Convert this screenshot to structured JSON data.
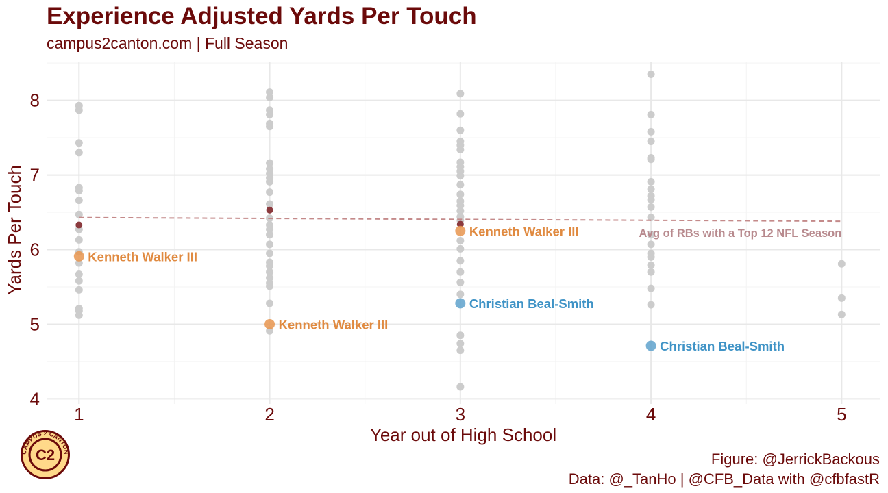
{
  "chart_data": {
    "type": "scatter",
    "title": "Experience Adjusted Yards Per Touch",
    "subtitle": "campus2canton.com | Full Season",
    "xlabel": "Year out of High School",
    "ylabel": "Yards Per Touch",
    "xlim": [
      0.83,
      5.2
    ],
    "ylim": [
      3.93,
      8.52
    ],
    "x_ticks": [
      1,
      2,
      3,
      4,
      5
    ],
    "y_ticks": [
      4,
      5,
      6,
      7,
      8
    ],
    "background_points": [
      {
        "x": 1,
        "y": 7.93
      },
      {
        "x": 1,
        "y": 7.87
      },
      {
        "x": 1,
        "y": 7.43
      },
      {
        "x": 1,
        "y": 7.3
      },
      {
        "x": 1,
        "y": 6.83
      },
      {
        "x": 1,
        "y": 6.79
      },
      {
        "x": 1,
        "y": 6.66
      },
      {
        "x": 1,
        "y": 6.47
      },
      {
        "x": 1,
        "y": 6.27
      },
      {
        "x": 1,
        "y": 6.13
      },
      {
        "x": 1,
        "y": 5.97
      },
      {
        "x": 1,
        "y": 5.82
      },
      {
        "x": 1,
        "y": 5.67
      },
      {
        "x": 1,
        "y": 5.58
      },
      {
        "x": 1,
        "y": 5.46
      },
      {
        "x": 1,
        "y": 5.21
      },
      {
        "x": 1,
        "y": 5.18
      },
      {
        "x": 1,
        "y": 5.12
      },
      {
        "x": 2,
        "y": 8.11
      },
      {
        "x": 2,
        "y": 8.04
      },
      {
        "x": 2,
        "y": 7.87
      },
      {
        "x": 2,
        "y": 7.81
      },
      {
        "x": 2,
        "y": 7.69
      },
      {
        "x": 2,
        "y": 7.65
      },
      {
        "x": 2,
        "y": 7.16
      },
      {
        "x": 2,
        "y": 7.08
      },
      {
        "x": 2,
        "y": 7.02
      },
      {
        "x": 2,
        "y": 6.96
      },
      {
        "x": 2,
        "y": 6.91
      },
      {
        "x": 2,
        "y": 6.77
      },
      {
        "x": 2,
        "y": 6.61
      },
      {
        "x": 2,
        "y": 6.42
      },
      {
        "x": 2,
        "y": 6.33
      },
      {
        "x": 2,
        "y": 6.27
      },
      {
        "x": 2,
        "y": 6.2
      },
      {
        "x": 2,
        "y": 6.07
      },
      {
        "x": 2,
        "y": 5.95
      },
      {
        "x": 2,
        "y": 5.83
      },
      {
        "x": 2,
        "y": 5.78
      },
      {
        "x": 2,
        "y": 5.7
      },
      {
        "x": 2,
        "y": 5.62
      },
      {
        "x": 2,
        "y": 5.55
      },
      {
        "x": 2,
        "y": 5.51
      },
      {
        "x": 2,
        "y": 5.28
      },
      {
        "x": 2,
        "y": 4.91
      },
      {
        "x": 3,
        "y": 8.09
      },
      {
        "x": 3,
        "y": 7.82
      },
      {
        "x": 3,
        "y": 7.6
      },
      {
        "x": 3,
        "y": 7.45
      },
      {
        "x": 3,
        "y": 7.4
      },
      {
        "x": 3,
        "y": 7.34
      },
      {
        "x": 3,
        "y": 7.17
      },
      {
        "x": 3,
        "y": 7.11
      },
      {
        "x": 3,
        "y": 7.05
      },
      {
        "x": 3,
        "y": 6.99
      },
      {
        "x": 3,
        "y": 6.87
      },
      {
        "x": 3,
        "y": 6.74
      },
      {
        "x": 3,
        "y": 6.65
      },
      {
        "x": 3,
        "y": 6.59
      },
      {
        "x": 3,
        "y": 6.52
      },
      {
        "x": 3,
        "y": 6.44
      },
      {
        "x": 3,
        "y": 6.39
      },
      {
        "x": 3,
        "y": 6.12
      },
      {
        "x": 3,
        "y": 6.01
      },
      {
        "x": 3,
        "y": 5.85
      },
      {
        "x": 3,
        "y": 5.7
      },
      {
        "x": 3,
        "y": 5.56
      },
      {
        "x": 3,
        "y": 5.4
      },
      {
        "x": 3,
        "y": 4.85
      },
      {
        "x": 3,
        "y": 4.74
      },
      {
        "x": 3,
        "y": 4.65
      },
      {
        "x": 3,
        "y": 4.16
      },
      {
        "x": 4,
        "y": 8.35
      },
      {
        "x": 4,
        "y": 7.81
      },
      {
        "x": 4,
        "y": 7.58
      },
      {
        "x": 4,
        "y": 7.45
      },
      {
        "x": 4,
        "y": 7.23
      },
      {
        "x": 4,
        "y": 7.21
      },
      {
        "x": 4,
        "y": 6.91
      },
      {
        "x": 4,
        "y": 6.81
      },
      {
        "x": 4,
        "y": 6.72
      },
      {
        "x": 4,
        "y": 6.67
      },
      {
        "x": 4,
        "y": 6.57
      },
      {
        "x": 4,
        "y": 6.43
      },
      {
        "x": 4,
        "y": 6.2
      },
      {
        "x": 4,
        "y": 6.07
      },
      {
        "x": 4,
        "y": 5.95
      },
      {
        "x": 4,
        "y": 5.9
      },
      {
        "x": 4,
        "y": 5.79
      },
      {
        "x": 4,
        "y": 5.7
      },
      {
        "x": 4,
        "y": 5.48
      },
      {
        "x": 4,
        "y": 5.26
      },
      {
        "x": 5,
        "y": 5.81
      },
      {
        "x": 5,
        "y": 5.35
      },
      {
        "x": 5,
        "y": 5.13
      }
    ],
    "average_points": [
      {
        "x": 1,
        "y": 6.33
      },
      {
        "x": 2,
        "y": 6.53
      },
      {
        "x": 3,
        "y": 6.34
      }
    ],
    "average_line": {
      "x": [
        1,
        5
      ],
      "y": [
        6.43,
        6.38
      ]
    },
    "average_label": "Avg of RBs with a Top 12 NFL Season",
    "series": [
      {
        "name": "Kenneth Walker III",
        "color": "#e8954f",
        "label_color": "#e08a40",
        "points": [
          {
            "x": 1,
            "y": 5.91
          },
          {
            "x": 2,
            "y": 5.0
          },
          {
            "x": 3,
            "y": 6.25
          }
        ]
      },
      {
        "name": "Christian Beal-Smith",
        "color": "#5fa2cc",
        "label_color": "#3f93c6",
        "points": [
          {
            "x": 3,
            "y": 5.28
          },
          {
            "x": 4,
            "y": 4.71
          }
        ]
      }
    ]
  },
  "caption": {
    "line1": "Figure: @JerrickBackous",
    "line2": "Data: @_TanHo | @CFB_Data with @cfbfastR"
  },
  "logo": {
    "letter": "C2",
    "ring_text": "CAMPUS 2 CANTON"
  },
  "colors": {
    "title": "#6b0a0a",
    "gray_point": "#cccccc",
    "avg_point": "#8b3a3e",
    "avg_line": "#c48a8a",
    "avg_label": "#b88a8e",
    "grid_major": "#e8e8e8",
    "grid_minor": "#f3f3f3",
    "logo_fill": "#ffd98a",
    "logo_ring": "#6b0a0a"
  }
}
